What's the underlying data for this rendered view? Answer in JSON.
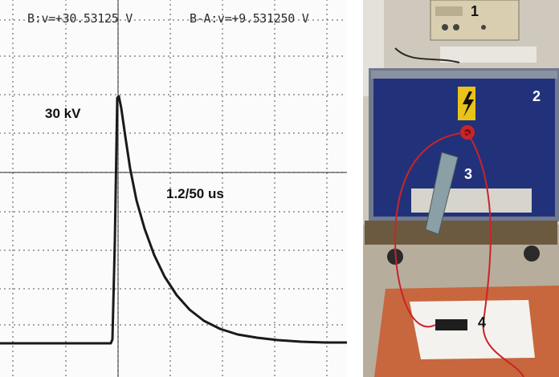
{
  "oscilloscope": {
    "readout_b": "B:v=+30.53125 V",
    "readout_ba": "B-A:v=+9.531250 V",
    "peak_label": "30 kV",
    "waveform_label": "1.2/50 us"
  },
  "photo": {
    "labels": [
      "1",
      "2",
      "3",
      "4"
    ]
  },
  "colors": {
    "trace": "#1a1a1a",
    "grid_dots": "#6a6a6a",
    "cabinet": "#22327a",
    "mat": "#c8663e",
    "cable": "#c8242a"
  }
}
